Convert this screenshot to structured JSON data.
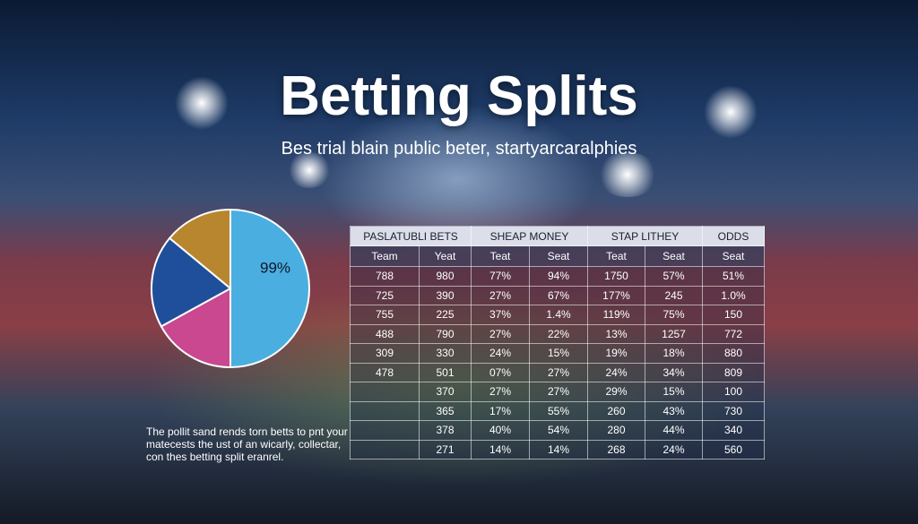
{
  "header": {
    "title": "Betting Splits",
    "subtitle": "Bes trial blain public beter, startyarcaralphies"
  },
  "pie": {
    "label": "99%",
    "slices": [
      {
        "color": "#4aaee0",
        "value": 50
      },
      {
        "color": "#c9488f",
        "value": 17
      },
      {
        "color": "#1f4f9a",
        "value": 19
      },
      {
        "color": "#b8862e",
        "value": 14
      }
    ]
  },
  "table": {
    "groups": [
      {
        "label": "PASLATUBLI BETS",
        "span": 2
      },
      {
        "label": "SHEAP MONEY",
        "span": 2
      },
      {
        "label": "STAP LITHEY",
        "span": 2
      },
      {
        "label": "ODDS",
        "span": 1
      }
    ],
    "columns": [
      "Team",
      "Yeat",
      "Teat",
      "Seat",
      "Teat",
      "Seat",
      "Seat"
    ],
    "rows": [
      [
        "788",
        "980",
        "77%",
        "94%",
        "1750",
        "57%",
        "51%"
      ],
      [
        "725",
        "390",
        "27%",
        "67%",
        "177%",
        "245",
        "1.0%"
      ],
      [
        "755",
        "225",
        "37%",
        "1.4%",
        "119%",
        "75%",
        "150"
      ],
      [
        "488",
        "790",
        "27%",
        "22%",
        "13%",
        "1257",
        "772"
      ],
      [
        "309",
        "330",
        "24%",
        "15%",
        "19%",
        "18%",
        "880"
      ],
      [
        "478",
        "501",
        "07%",
        "27%",
        "24%",
        "34%",
        "809"
      ],
      [
        null,
        "370",
        "27%",
        "27%",
        "29%",
        "15%",
        "100"
      ],
      [
        null,
        "365",
        "17%",
        "55%",
        "260",
        "43%",
        "730"
      ],
      [
        null,
        "378",
        "40%",
        "54%",
        "280",
        "44%",
        "340"
      ],
      [
        null,
        "271",
        "14%",
        "14%",
        "268",
        "24%",
        "560"
      ]
    ]
  },
  "caption": "The pollit sand rends torn betts to pnt your matecests the ust of an wicarly, collectar, con thes betting split eranrel."
}
